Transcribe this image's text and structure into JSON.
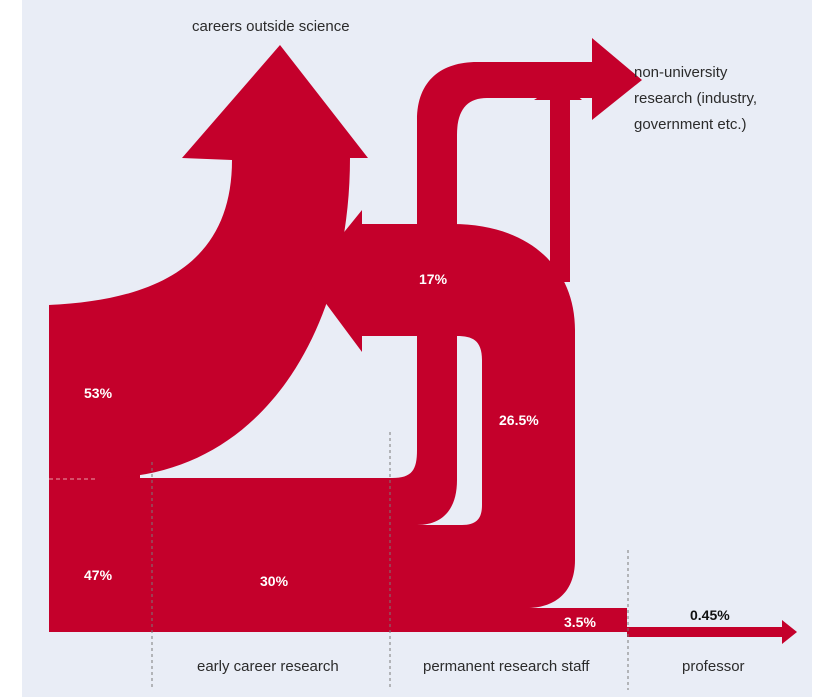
{
  "colors": {
    "flow": "#c4002b",
    "background": "#e9edf6",
    "separator": "#7a7a7a"
  },
  "labels": {
    "careers_outside": "careers outside science",
    "non_university_line1": "non-university",
    "non_university_line2": "research (industry,",
    "non_university_line3": "government etc.)"
  },
  "stages": {
    "early": "early career research",
    "permanent": "permanent research staff",
    "professor": "professor"
  },
  "flows": {
    "outside_53": "53%",
    "stay_47": "47%",
    "early_30": "30%",
    "permanent_17": "17%",
    "permanent_26_5": "26.5%",
    "staff_3_5": "3.5%",
    "professor_0_45": "0.45%"
  }
}
